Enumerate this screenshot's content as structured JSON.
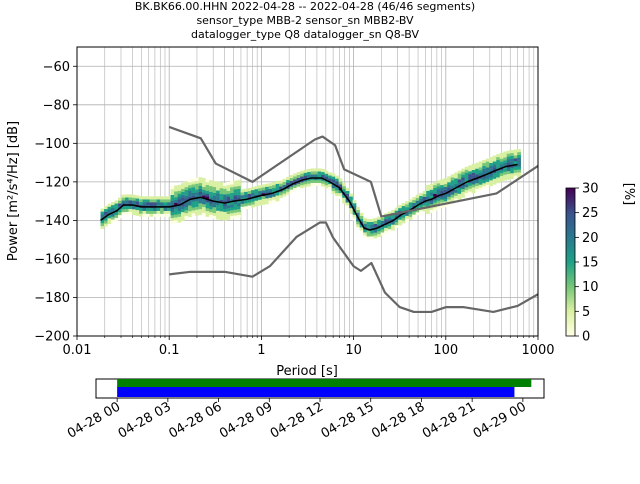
{
  "header": {
    "line1": "BK.BK66.00.HHN   2022-04-28 -- 2022-04-28  (46/46 segments)",
    "line2": "sensor_type MBB-2 sensor_sn MBB2-BV",
    "line3": "datalogger_type Q8 datalogger_sn Q8-BV"
  },
  "chart_data": [
    {
      "type": "heatmap",
      "title": "BK.BK66.00.HHN   2022-04-28 -- 2022-04-28  (46/46 segments)",
      "xlabel": "Period [s]",
      "ylabel": "Power [m²/s⁴/Hz] [dB]",
      "xscale": "log",
      "xlim": [
        0.01,
        1000
      ],
      "ylim": [
        -200,
        -50
      ],
      "xticks": [
        0.01,
        0.1,
        1,
        10,
        100,
        1000
      ],
      "xtick_labels": [
        "0.01",
        "0.1",
        "1",
        "10",
        "100",
        "1000"
      ],
      "yticks": [
        -200,
        -180,
        -160,
        -140,
        -120,
        -100,
        -80,
        -60
      ],
      "ytick_labels": [
        "−200",
        "−180",
        "−160",
        "−140",
        "−120",
        "−100",
        "−80",
        "−60"
      ],
      "grid": true,
      "colorbar": {
        "label": "[%]",
        "range": [
          0,
          30
        ],
        "ticks": [
          0,
          5,
          10,
          15,
          20,
          25,
          30
        ],
        "colors": [
          "#ffffe5",
          "#d9f0a3",
          "#78c679",
          "#1fa187",
          "#2a788e",
          "#3b528b",
          "#440154"
        ]
      },
      "series": [
        {
          "role": "mode",
          "color": "#000000",
          "x": [
            0.018,
            0.022,
            0.027,
            0.032,
            0.04,
            0.05,
            0.07,
            0.1,
            0.13,
            0.17,
            0.22,
            0.3,
            0.4,
            0.5,
            0.7,
            1.0,
            1.3,
            1.7,
            2.2,
            2.8,
            3.5,
            4.5,
            5.5,
            7.0,
            9.0,
            11,
            13,
            15,
            18,
            22,
            27,
            33,
            40,
            50,
            60,
            70,
            85,
            100,
            130,
            170,
            220,
            280,
            350,
            450,
            600
          ],
          "y": [
            -140,
            -137,
            -135,
            -132,
            -132,
            -133,
            -133,
            -133,
            -132,
            -129,
            -128,
            -130,
            -131,
            -130,
            -129,
            -127,
            -126,
            -124,
            -121,
            -119,
            -118,
            -118,
            -120,
            -123,
            -130,
            -138,
            -144,
            -145,
            -144,
            -142,
            -140,
            -137,
            -135,
            -132,
            -130,
            -129,
            -127,
            -126,
            -123,
            -120,
            -118,
            -116,
            -114,
            -112,
            -111
          ]
        },
        {
          "role": "nhnm",
          "color": "#666666",
          "x": [
            0.1,
            0.22,
            0.32,
            0.8,
            3.8,
            4.6,
            6.3,
            7.9,
            15.4,
            20,
            354.8,
            10000
          ],
          "y": [
            -91.5,
            -97.4,
            -110.5,
            -120,
            -98,
            -96.5,
            -101,
            -113.5,
            -120,
            -138,
            -126,
            -80
          ]
        },
        {
          "role": "nlnm",
          "color": "#666666",
          "x": [
            0.1,
            0.17,
            0.4,
            0.8,
            1.24,
            2.4,
            4.3,
            5.0,
            6.0,
            10,
            12,
            15.6,
            21.9,
            31.6,
            45,
            70,
            101,
            154,
            328,
            600,
            1000
          ],
          "y": [
            -168,
            -166.7,
            -166.7,
            -169.2,
            -163.7,
            -148.6,
            -141.1,
            -141.1,
            -149,
            -163.8,
            -166.2,
            -162.1,
            -177.5,
            -185,
            -187.5,
            -187.5,
            -185,
            -185,
            -187.5,
            -184.4,
            -178.3
          ]
        }
      ]
    },
    {
      "type": "bar",
      "xlabel": "",
      "ylabel": "",
      "x_tick_labels": [
        "04-28 00",
        "04-28 03",
        "04-28 06",
        "04-28 09",
        "04-28 12",
        "04-28 15",
        "04-28 18",
        "04-28 21",
        "04-29 00"
      ],
      "xlim_hours": [
        -1.25,
        25.25
      ],
      "series": [
        {
          "role": "data-coverage",
          "color": "#008000",
          "start_hour": 0,
          "end_hour": 24.5
        },
        {
          "role": "psd-coverage",
          "color": "#0000ff",
          "start_hour": 0,
          "end_hour": 23.5
        }
      ]
    }
  ]
}
